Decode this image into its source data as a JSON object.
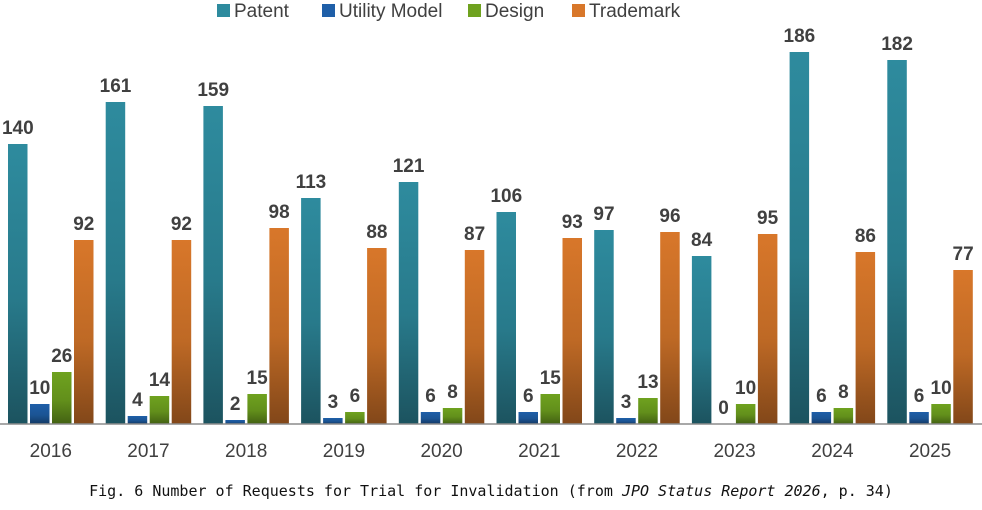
{
  "chart_data": {
    "type": "bar",
    "categories": [
      "2016",
      "2017",
      "2018",
      "2019",
      "2020",
      "2021",
      "2022",
      "2023",
      "2024",
      "2025"
    ],
    "series": [
      {
        "name": "Patent",
        "color": "#2E8B9E",
        "values": [
          140,
          161,
          159,
          113,
          121,
          106,
          97,
          84,
          186,
          182
        ]
      },
      {
        "name": "Utility Model",
        "color": "#1F5FA8",
        "values": [
          10,
          4,
          2,
          3,
          6,
          6,
          3,
          0,
          6,
          6
        ]
      },
      {
        "name": "Design",
        "color": "#6FA21F",
        "values": [
          26,
          14,
          15,
          6,
          8,
          15,
          13,
          10,
          8,
          10
        ]
      },
      {
        "name": "Trademark",
        "color": "#D8772A",
        "values": [
          92,
          92,
          98,
          88,
          87,
          93,
          96,
          95,
          86,
          77
        ]
      }
    ],
    "legend_position": "top",
    "grid": false,
    "data_labels": true
  },
  "caption": {
    "prefix": "Fig. 6  Number of Requests for Trial for Invalidation (from ",
    "source": "JPO Status Report 2026",
    "suffix": ", p. 34)"
  }
}
